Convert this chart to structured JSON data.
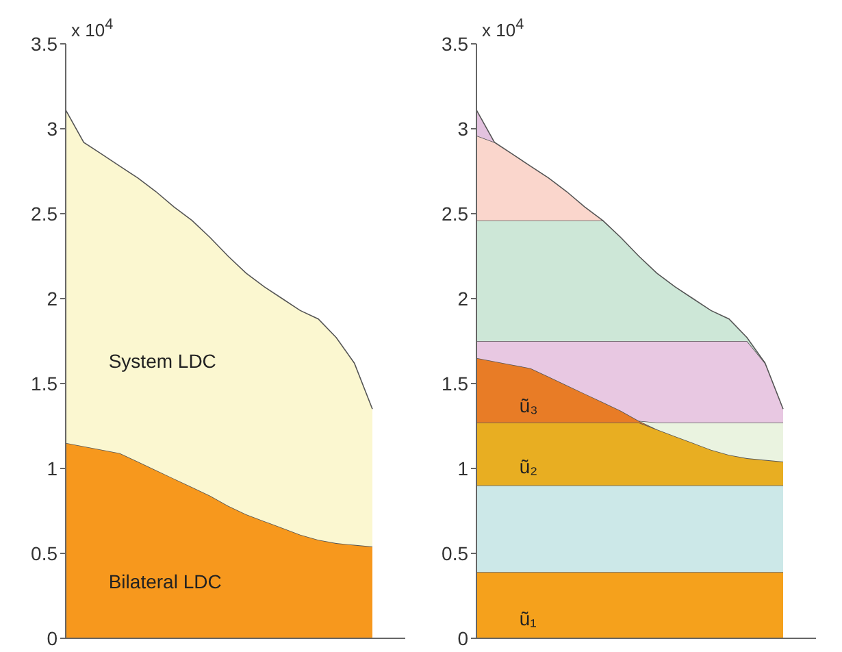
{
  "chart_data": [
    {
      "type": "area",
      "stacked": true,
      "tick_labels": "y",
      "categories": [
        null,
        null,
        null,
        null,
        null,
        null,
        null,
        null,
        null,
        null,
        null,
        null,
        null,
        null,
        null,
        null,
        null,
        null
      ],
      "ylim": [
        0,
        3.5
      ],
      "yticks": [
        0,
        0.5,
        1,
        1.5,
        2,
        2.5,
        3,
        3.5
      ],
      "annotations": [
        "x 10$^{4}$"
      ],
      "series": [
        {
          "name": "Bilateral LDC",
          "color": "#f7981d",
          "values": [
            1.15,
            1.13,
            1.11,
            1.09,
            1.04,
            0.99,
            0.94,
            0.89,
            0.84,
            0.78,
            0.73,
            0.69,
            0.65,
            0.61,
            0.58,
            0.56,
            0.55,
            0.54
          ]
        },
        {
          "name": "System LDC",
          "color": "#fbf7d0",
          "values": [
            1.96,
            1.79,
            1.74,
            1.69,
            1.67,
            1.64,
            1.6,
            1.57,
            1.52,
            1.47,
            1.42,
            1.38,
            1.35,
            1.32,
            1.3,
            1.21,
            1.07,
            0.81
          ]
        }
      ]
    },
    {
      "type": "area",
      "stacked": true,
      "tick_labels": "y",
      "categories": [
        null,
        null,
        null,
        null,
        null,
        null,
        null,
        null,
        null,
        null,
        null,
        null,
        null,
        null,
        null,
        null,
        null,
        null
      ],
      "ylim": [
        0,
        3.5
      ],
      "yticks": [
        0,
        0.5,
        1,
        1.5,
        2,
        2.5,
        3,
        3.5
      ],
      "annotations": [
        "x 10$^{4}$"
      ],
      "series": [
        {
          "name": "ũ₁",
          "color": "#f5a11c",
          "values": [
            0.39,
            0.39,
            0.39,
            0.39,
            0.39,
            0.39,
            0.39,
            0.39,
            0.39,
            0.39,
            0.39,
            0.39,
            0.39,
            0.39,
            0.39,
            0.39,
            0.39,
            0.39
          ]
        },
        {
          "color": "#cce8e8",
          "values": [
            0.51,
            0.51,
            0.51,
            0.51,
            0.51,
            0.51,
            0.51,
            0.51,
            0.51,
            0.51,
            0.51,
            0.51,
            0.51,
            0.51,
            0.51,
            0.51,
            0.51,
            0.51
          ]
        },
        {
          "name": "ũ₂",
          "color": "#e8ae22",
          "values": [
            0.37,
            0.37,
            0.37,
            0.37,
            0.37,
            0.37,
            0.37,
            0.37,
            0.37,
            0.37,
            0.33,
            0.29,
            0.25,
            0.21,
            0.18,
            0.16,
            0.15,
            0.14
          ]
        },
        {
          "name": "ũ₃",
          "color": "#e87c26",
          "values": [
            0.38,
            0.36,
            0.34,
            0.32,
            0.27,
            0.22,
            0.17,
            0.12,
            0.07,
            0.01,
            0,
            null,
            null,
            null,
            null,
            null,
            null,
            null
          ]
        },
        {
          "color": "#eaf3e0",
          "values": [
            null,
            null,
            null,
            null,
            null,
            null,
            null,
            null,
            null,
            0,
            0.04,
            0.08,
            0.12,
            0.16,
            0.19,
            0.21,
            0.22,
            0.23
          ]
        },
        {
          "color": "#e8c8e2",
          "values": [
            0.1,
            0.12,
            0.14,
            0.16,
            0.21,
            0.26,
            0.31,
            0.36,
            0.41,
            0.47,
            0.48,
            0.48,
            0.48,
            0.48,
            0.48,
            0.48,
            0.35,
            0.08
          ]
        },
        {
          "color": "#cde7d7",
          "values": [
            0.71,
            0.71,
            0.71,
            0.71,
            0.71,
            0.71,
            0.71,
            0.71,
            0.61,
            0.5,
            0.4,
            0.32,
            0.25,
            0.18,
            0.13,
            0.02,
            0,
            null
          ]
        },
        {
          "color": "#fad6cc",
          "values": [
            0.5,
            0.46,
            0.39,
            0.32,
            0.25,
            0.17,
            0.08,
            0,
            null,
            null,
            null,
            null,
            null,
            null,
            null,
            null,
            null,
            null
          ]
        },
        {
          "color": "#e3c2df",
          "values": [
            0.15,
            0,
            null,
            null,
            null,
            null,
            null,
            null,
            null,
            null,
            null,
            null,
            null,
            null,
            null,
            null,
            null,
            null
          ]
        }
      ]
    }
  ]
}
